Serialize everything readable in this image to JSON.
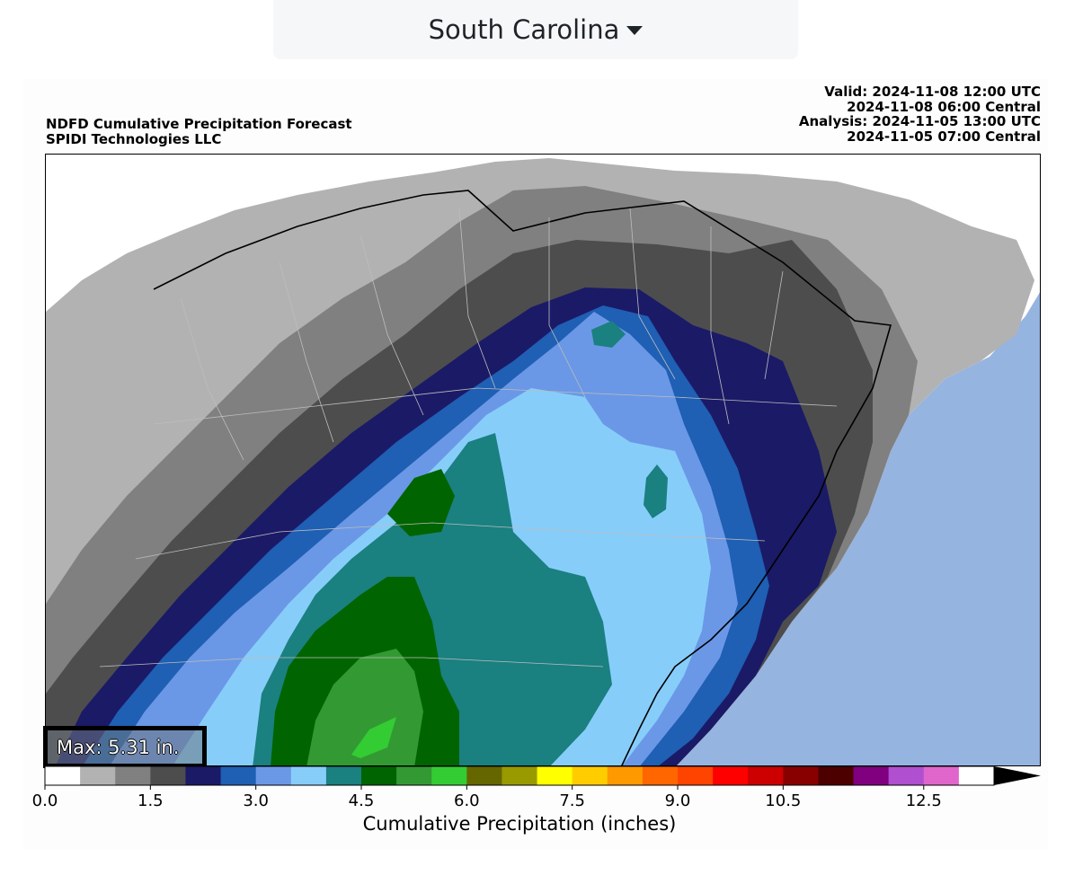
{
  "state_selector": {
    "label": "South Carolina",
    "icon": "caret-down-icon"
  },
  "header": {
    "title": "NDFD Cumulative Precipitation Forecast",
    "credit": "SPIDI Technologies LLC",
    "valid_utc": "Valid: 2024-11-08 12:00 UTC",
    "valid_central": "2024-11-08 06:00 Central",
    "analysis_utc": "Analysis: 2024-11-05 13:00 UTC",
    "analysis_central": "2024-11-05 07:00 Central"
  },
  "max_label": "Max: 5.31 in.",
  "colorbar": {
    "title": "Cumulative Precipitation (inches)",
    "tick_labels": [
      "0.0",
      "1.5",
      "3.0",
      "4.5",
      "6.0",
      "7.5",
      "9.0",
      "10.5",
      "12.5"
    ],
    "tick_values": [
      0.0,
      1.5,
      3.0,
      4.5,
      6.0,
      7.5,
      9.0,
      10.5,
      12.5
    ],
    "range": [
      0,
      13.5
    ],
    "extend": "max",
    "bins": [
      {
        "min": 0.0,
        "max": 0.5,
        "color": "#ffffff"
      },
      {
        "min": 0.5,
        "max": 1.0,
        "color": "#b2b2b2"
      },
      {
        "min": 1.0,
        "max": 1.5,
        "color": "#808080"
      },
      {
        "min": 1.5,
        "max": 2.0,
        "color": "#4d4d4d"
      },
      {
        "min": 2.0,
        "max": 2.5,
        "color": "#1b1a67"
      },
      {
        "min": 2.5,
        "max": 3.0,
        "color": "#1f5fb4"
      },
      {
        "min": 3.0,
        "max": 3.5,
        "color": "#6a98e6"
      },
      {
        "min": 3.5,
        "max": 4.0,
        "color": "#87cdfa"
      },
      {
        "min": 4.0,
        "max": 4.5,
        "color": "#1a8080"
      },
      {
        "min": 4.5,
        "max": 5.0,
        "color": "#006400"
      },
      {
        "min": 5.0,
        "max": 5.5,
        "color": "#339933"
      },
      {
        "min": 5.5,
        "max": 6.0,
        "color": "#33cc33"
      },
      {
        "min": 6.0,
        "max": 6.5,
        "color": "#666600"
      },
      {
        "min": 6.5,
        "max": 7.0,
        "color": "#999900"
      },
      {
        "min": 7.0,
        "max": 7.5,
        "color": "#ffff00"
      },
      {
        "min": 7.5,
        "max": 8.0,
        "color": "#ffcc00"
      },
      {
        "min": 8.0,
        "max": 8.5,
        "color": "#ff9900"
      },
      {
        "min": 8.5,
        "max": 9.0,
        "color": "#ff6600"
      },
      {
        "min": 9.0,
        "max": 9.5,
        "color": "#ff4400"
      },
      {
        "min": 9.5,
        "max": 10.0,
        "color": "#ff0000"
      },
      {
        "min": 10.0,
        "max": 10.5,
        "color": "#cc0000"
      },
      {
        "min": 10.5,
        "max": 11.0,
        "color": "#880000"
      },
      {
        "min": 11.0,
        "max": 11.5,
        "color": "#4d0000"
      },
      {
        "min": 11.5,
        "max": 12.0,
        "color": "#800080"
      },
      {
        "min": 12.0,
        "max": 12.5,
        "color": "#b04fcf"
      },
      {
        "min": 12.5,
        "max": 13.0,
        "color": "#e066cc"
      },
      {
        "min": 13.0,
        "max": 13.5,
        "color": "#ffffff"
      }
    ],
    "over_color": "#000000"
  },
  "map_colors": {
    "ocean": "#96b4e0",
    "land_none": "#ffffff",
    "border": "#000000",
    "county": "#bdbdbd"
  }
}
